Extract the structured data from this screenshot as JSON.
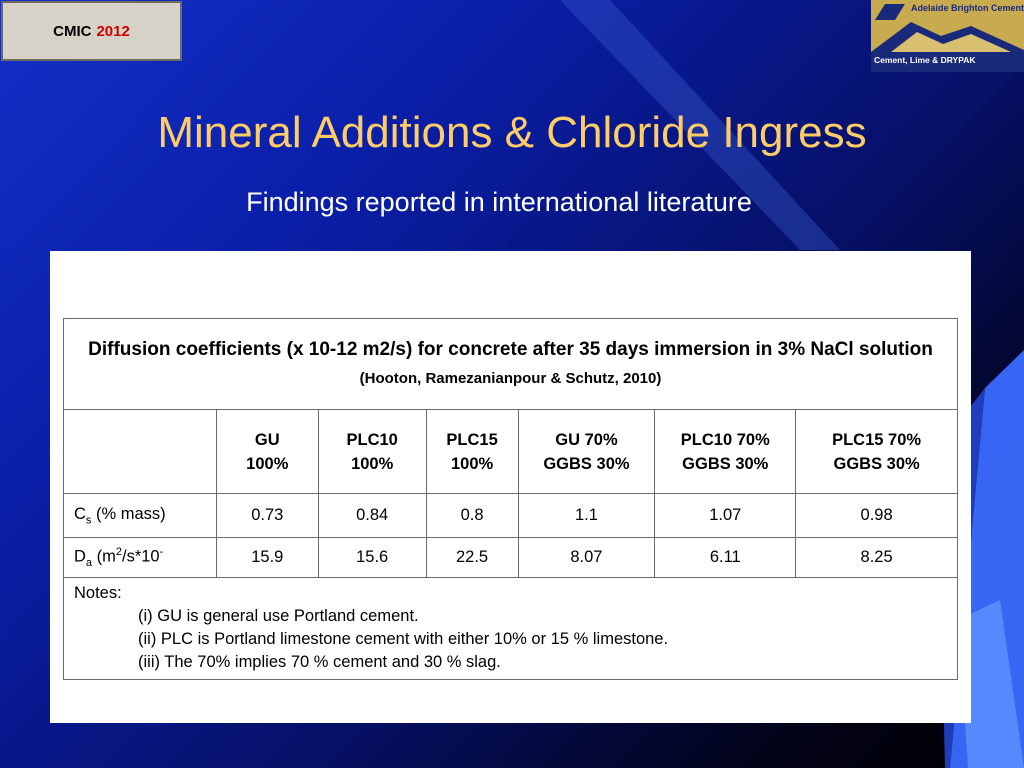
{
  "badge": {
    "label": "CMIC",
    "year": "2012"
  },
  "logo": {
    "company": "Adelaide Brighton Cement",
    "tagline": "Cement, Lime & DRYPAK"
  },
  "slide": {
    "title": "Mineral Additions & Chloride Ingress",
    "subtitle": "Findings reported in international literature"
  },
  "table": {
    "caption": "Diffusion coefficients (x 10-12 m2/s) for concrete after 35 days immersion in 3% NaCl solution",
    "caption_ref": "(Hooton, Ramezanianpour & Schutz, 2010)",
    "headers": [
      {
        "line1": "GU",
        "line2": "100%"
      },
      {
        "line1": "PLC10",
        "line2": "100%"
      },
      {
        "line1": "PLC15",
        "line2": "100%"
      },
      {
        "line1": "GU 70%",
        "line2": "GGBS 30%"
      },
      {
        "line1": "PLC10 70%",
        "line2": "GGBS 30%"
      },
      {
        "line1": "PLC15 70%",
        "line2": "GGBS 30%"
      }
    ],
    "rows": [
      {
        "label_main": "C",
        "label_sub": "s",
        "label_rest": " (% mass)",
        "values": [
          "0.73",
          "0.84",
          "0.8",
          "1.1",
          "1.07",
          "0.98"
        ]
      },
      {
        "label_main": "D",
        "label_sub": "a",
        "label_rest": " (m",
        "label_sup": "2",
        "label_rest2": "/s*10",
        "label_sup2": "-",
        "values": [
          "15.9",
          "15.6",
          "22.5",
          "8.07",
          "6.11",
          "8.25"
        ]
      }
    ],
    "notes": {
      "heading": "Notes:",
      "items": [
        "(i) GU is general use Portland cement.",
        "(ii) PLC is Portland limestone cement with either 10% or 15 % limestone.",
        "(iii) The 70% implies 70 % cement and 30 % slag."
      ]
    }
  }
}
